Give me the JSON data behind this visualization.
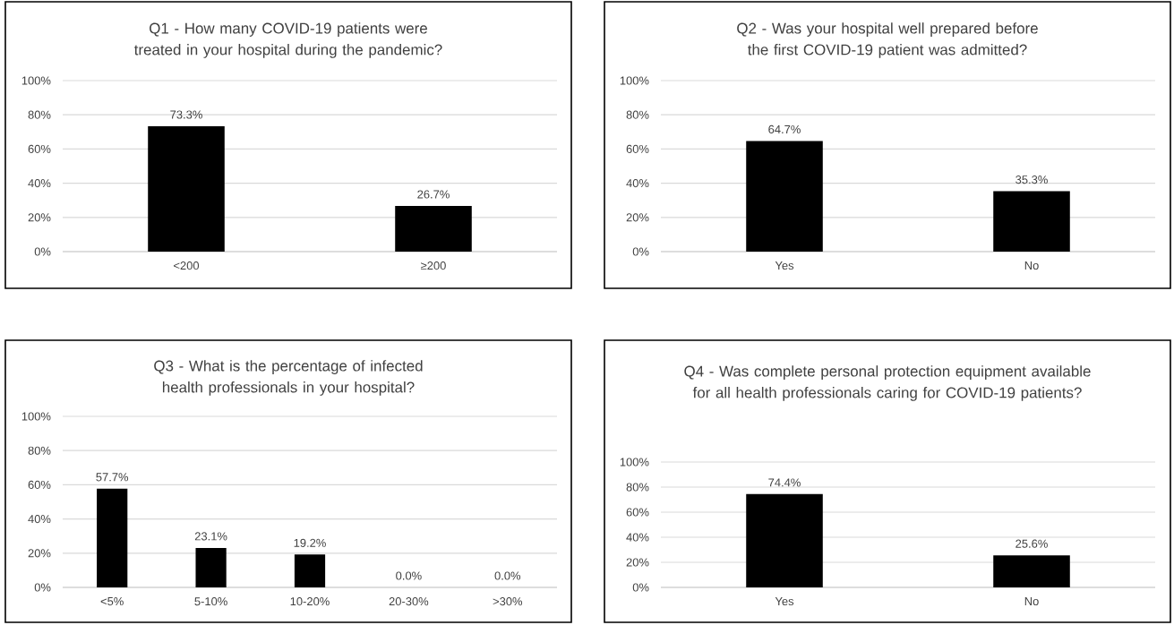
{
  "chart_data": [
    {
      "type": "bar",
      "title": "Q1 - How many COVID-19 patients were treated in your hospital during the pandemic?",
      "categories": [
        "<200",
        "≥200"
      ],
      "values": [
        73.3,
        26.7
      ],
      "value_labels": [
        "73.3%",
        "26.7%"
      ],
      "color": "#000000",
      "ylim": [
        0,
        100
      ],
      "yticks": [
        {
          "value": 0,
          "label": "0%"
        },
        {
          "value": 20,
          "label": "20%"
        },
        {
          "value": 40,
          "label": "40%"
        },
        {
          "value": 60,
          "label": "60%"
        },
        {
          "value": 80,
          "label": "80%"
        },
        {
          "value": 100,
          "label": "100%"
        }
      ],
      "grid": "y"
    },
    {
      "type": "bar",
      "title": "Q2 - Was your hospital well prepared before the first COVID-19 patient was admitted?",
      "categories": [
        "Yes",
        "No"
      ],
      "values": [
        64.7,
        35.3
      ],
      "value_labels": [
        "64.7%",
        "35.3%"
      ],
      "color": "#000000",
      "ylim": [
        0,
        100
      ],
      "yticks": [
        {
          "value": 0,
          "label": "0%"
        },
        {
          "value": 20,
          "label": "20%"
        },
        {
          "value": 40,
          "label": "40%"
        },
        {
          "value": 60,
          "label": "60%"
        },
        {
          "value": 80,
          "label": "80%"
        },
        {
          "value": 100,
          "label": "100%"
        }
      ],
      "grid": "y"
    },
    {
      "type": "bar",
      "title": "Q3 - What is the percentage of infected health professionals in your hospital?",
      "categories": [
        "<5%",
        "5-10%",
        "10-20%",
        "20-30%",
        ">30%"
      ],
      "values": [
        57.7,
        23.1,
        19.2,
        0.0,
        0.0
      ],
      "value_labels": [
        "57.7%",
        "23.1%",
        "19.2%",
        "0.0%",
        "0.0%"
      ],
      "color": "#000000",
      "ylim": [
        0,
        100
      ],
      "yticks": [
        {
          "value": 0,
          "label": "0%"
        },
        {
          "value": 20,
          "label": "20%"
        },
        {
          "value": 40,
          "label": "40%"
        },
        {
          "value": 60,
          "label": "60%"
        },
        {
          "value": 80,
          "label": "80%"
        },
        {
          "value": 100,
          "label": "100%"
        }
      ],
      "grid": "y"
    },
    {
      "type": "bar",
      "title": "Q4 - Was complete personal protection equipment available for all health professionals caring for COVID-19 patients?",
      "categories": [
        "Yes",
        "No"
      ],
      "values": [
        74.4,
        25.6
      ],
      "value_labels": [
        "74.4%",
        "25.6%"
      ],
      "color": "#000000",
      "ylim": [
        0,
        100
      ],
      "yticks": [
        {
          "value": 0,
          "label": "0%"
        },
        {
          "value": 20,
          "label": "20%"
        },
        {
          "value": 40,
          "label": "40%"
        },
        {
          "value": 60,
          "label": "60%"
        },
        {
          "value": 80,
          "label": "80%"
        },
        {
          "value": 100,
          "label": "100%"
        }
      ],
      "grid": "y"
    }
  ]
}
